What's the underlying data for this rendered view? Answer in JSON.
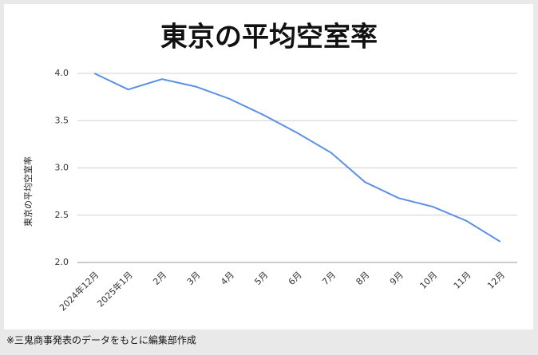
{
  "chart_data": {
    "type": "line",
    "title": "東京の平均空室率",
    "y_label": "東京の平均空室率",
    "categories": [
      "2024年12月",
      "2025年1月",
      "2月",
      "3月",
      "4月",
      "5月",
      "6月",
      "7月",
      "8月",
      "9月",
      "10月",
      "11月",
      "12月"
    ],
    "series": [
      {
        "name": "東京の平均空室率",
        "color": "#5b8fe6",
        "values": [
          4.0,
          3.83,
          3.94,
          3.86,
          3.73,
          3.56,
          3.37,
          3.16,
          2.85,
          2.68,
          2.59,
          2.44,
          2.22
        ]
      }
    ],
    "ylim": [
      2,
      4.2
    ],
    "yticks": [
      {
        "value": 2,
        "label": "2.0"
      },
      {
        "value": 2.5,
        "label": "2.5"
      },
      {
        "value": 3,
        "label": "3.0"
      },
      {
        "value": 3.5,
        "label": "3.5"
      },
      {
        "value": 4,
        "label": "4.0"
      }
    ],
    "grid": true
  },
  "note": "※三鬼商事発表のデータをもとに編集部作成"
}
